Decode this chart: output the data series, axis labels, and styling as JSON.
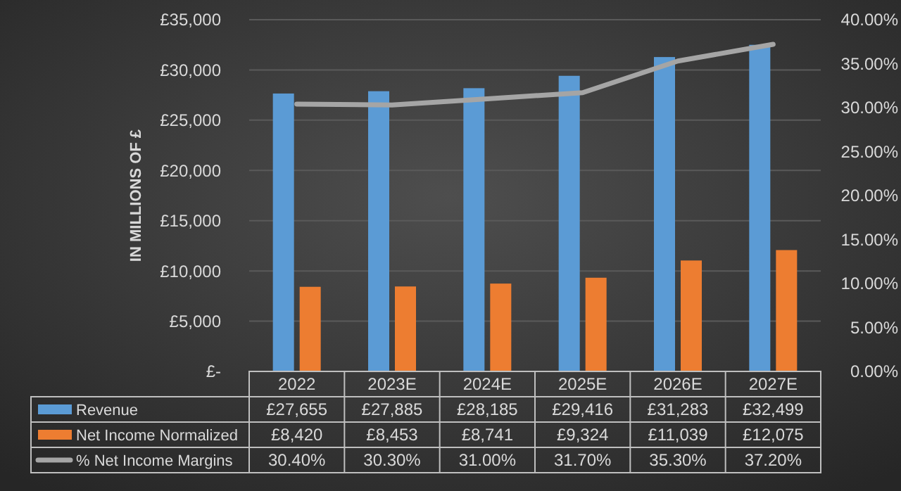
{
  "chart_data": {
    "type": "bar",
    "ylabel": "IN MILLIONS OF £",
    "categories": [
      "2022",
      "2023E",
      "2024E",
      "2025E",
      "2026E",
      "2027E"
    ],
    "series": [
      {
        "name": "Revenue",
        "color": "#5b9bd5",
        "values": [
          27655,
          27885,
          28185,
          29416,
          31283,
          32499
        ],
        "value_labels": [
          "£27,655",
          "£27,885",
          "£28,185",
          "£29,416",
          "£31,283",
          "£32,499"
        ]
      },
      {
        "name": "Net Income Normalized",
        "color": "#ed7d31",
        "values": [
          8420,
          8453,
          8741,
          9324,
          11039,
          12075
        ],
        "value_labels": [
          "£8,420",
          "£8,453",
          "£8,741",
          "£9,324",
          "£11,039",
          "£12,075"
        ]
      },
      {
        "name": "% Net Income Margins",
        "type": "line",
        "axis": "y2",
        "color": "#a5a5a5",
        "values": [
          30.4,
          30.3,
          31.0,
          31.7,
          35.3,
          37.2
        ],
        "value_labels": [
          "30.40%",
          "30.30%",
          "31.00%",
          "31.70%",
          "35.30%",
          "37.20%"
        ]
      }
    ],
    "ylim": [
      0,
      35000
    ],
    "yticks": [
      {
        "value": 0,
        "label": "£-"
      },
      {
        "value": 5000,
        "label": "£5,000"
      },
      {
        "value": 10000,
        "label": "£10,000"
      },
      {
        "value": 15000,
        "label": "£15,000"
      },
      {
        "value": 20000,
        "label": "£20,000"
      },
      {
        "value": 25000,
        "label": "£25,000"
      },
      {
        "value": 30000,
        "label": "£30,000"
      },
      {
        "value": 35000,
        "label": "£35,000"
      }
    ],
    "y2lim": [
      0,
      40
    ],
    "y2ticks": [
      {
        "value": 0,
        "label": "0.00%"
      },
      {
        "value": 5,
        "label": "5.00%"
      },
      {
        "value": 10,
        "label": "10.00%"
      },
      {
        "value": 15,
        "label": "15.00%"
      },
      {
        "value": 20,
        "label": "20.00%"
      },
      {
        "value": 25,
        "label": "25.00%"
      },
      {
        "value": 30,
        "label": "30.00%"
      },
      {
        "value": 35,
        "label": "35.00%"
      },
      {
        "value": 40,
        "label": "40.00%"
      }
    ],
    "grid": "y",
    "legend": "bottom",
    "marker": "none",
    "line_style": "solid"
  }
}
